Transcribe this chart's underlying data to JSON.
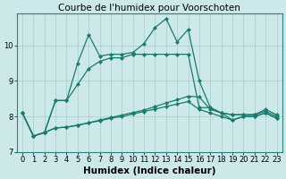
{
  "title": "Courbe de l'humidex pour Voorschoten",
  "xlabel": "Humidex (Indice chaleur)",
  "background_color": "#cce8e8",
  "grid_color": "#aacccc",
  "line_color": "#1a7a6e",
  "x": [
    0,
    1,
    2,
    3,
    4,
    5,
    6,
    7,
    8,
    9,
    10,
    11,
    12,
    13,
    14,
    15,
    16,
    17,
    18,
    19,
    20,
    21,
    22,
    23
  ],
  "line1": [
    8.1,
    7.45,
    7.55,
    8.45,
    8.45,
    8.9,
    9.35,
    9.55,
    9.65,
    9.65,
    9.75,
    9.75,
    9.75,
    9.75,
    9.75,
    9.75,
    8.25,
    8.25,
    8.1,
    8.05,
    8.05,
    8.05,
    8.15,
    8.0
  ],
  "line2": [
    8.1,
    7.45,
    7.55,
    8.45,
    8.45,
    9.5,
    10.3,
    9.7,
    9.75,
    9.75,
    9.8,
    10.05,
    10.5,
    10.75,
    10.1,
    10.45,
    9.0,
    8.25,
    8.1,
    8.05,
    8.05,
    8.05,
    8.2,
    8.05
  ],
  "line3": [
    8.1,
    7.45,
    7.55,
    7.68,
    7.7,
    7.75,
    7.82,
    7.88,
    7.95,
    8.0,
    8.07,
    8.14,
    8.21,
    8.28,
    8.35,
    8.42,
    8.2,
    8.1,
    8.0,
    7.9,
    8.0,
    8.0,
    8.1,
    7.95
  ],
  "line4": [
    8.1,
    7.45,
    7.55,
    7.68,
    7.7,
    7.76,
    7.82,
    7.9,
    7.97,
    8.04,
    8.11,
    8.18,
    8.28,
    8.38,
    8.47,
    8.57,
    8.55,
    8.2,
    8.1,
    7.9,
    8.0,
    8.0,
    8.1,
    7.95
  ],
  "ylim": [
    7.0,
    10.9
  ],
  "yticks": [
    7,
    8,
    9,
    10
  ],
  "xticks": [
    0,
    1,
    2,
    3,
    4,
    5,
    6,
    7,
    8,
    9,
    10,
    11,
    12,
    13,
    14,
    15,
    16,
    17,
    18,
    19,
    20,
    21,
    22,
    23
  ],
  "title_fontsize": 7.5,
  "xlabel_fontsize": 7.5,
  "tick_fontsize": 6.0,
  "markersize": 2.2,
  "linewidth": 0.9
}
